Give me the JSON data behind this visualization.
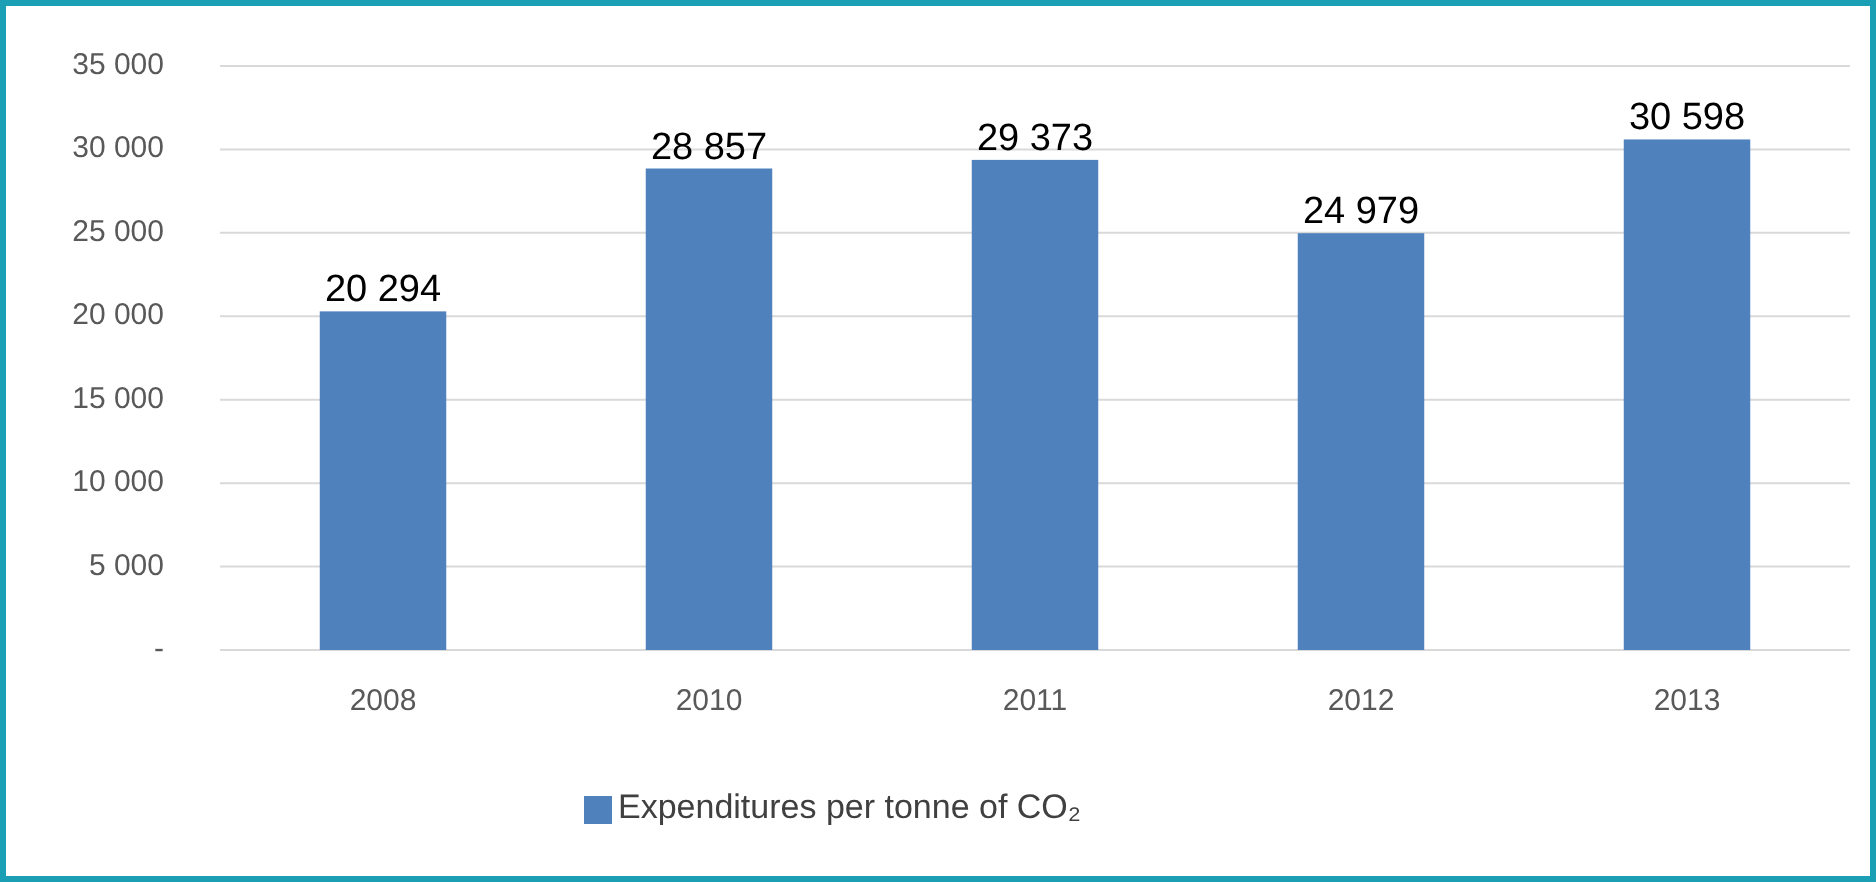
{
  "chart_data": {
    "type": "bar",
    "categories": [
      "2008",
      "2010",
      "2011",
      "2012",
      "2013"
    ],
    "series": [
      {
        "name": "Expenditures per tonne of CO₂",
        "color": "#4f81bd",
        "values": [
          20294,
          28857,
          29373,
          24979,
          30598
        ],
        "value_labels": [
          "20 294",
          "28 857",
          "29 373",
          "24 979",
          "30 598"
        ]
      }
    ],
    "ylim": [
      0,
      35000
    ],
    "yticks": [
      {
        "value": 0,
        "label": "-"
      },
      {
        "value": 5000,
        "label": "5 000"
      },
      {
        "value": 10000,
        "label": "10 000"
      },
      {
        "value": 15000,
        "label": "15 000"
      },
      {
        "value": 20000,
        "label": "20 000"
      },
      {
        "value": 25000,
        "label": "25 000"
      },
      {
        "value": 30000,
        "label": "30 000"
      },
      {
        "value": 35000,
        "label": "35 000"
      }
    ],
    "grid": "y",
    "legend": "bottom"
  }
}
